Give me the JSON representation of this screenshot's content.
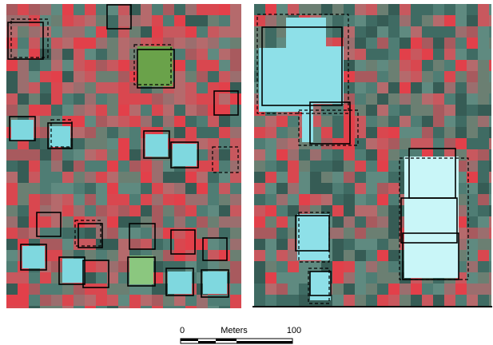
{
  "scale_bar": {
    "start_label": "0",
    "unit_label": "Meters",
    "end_label": "100"
  }
}
